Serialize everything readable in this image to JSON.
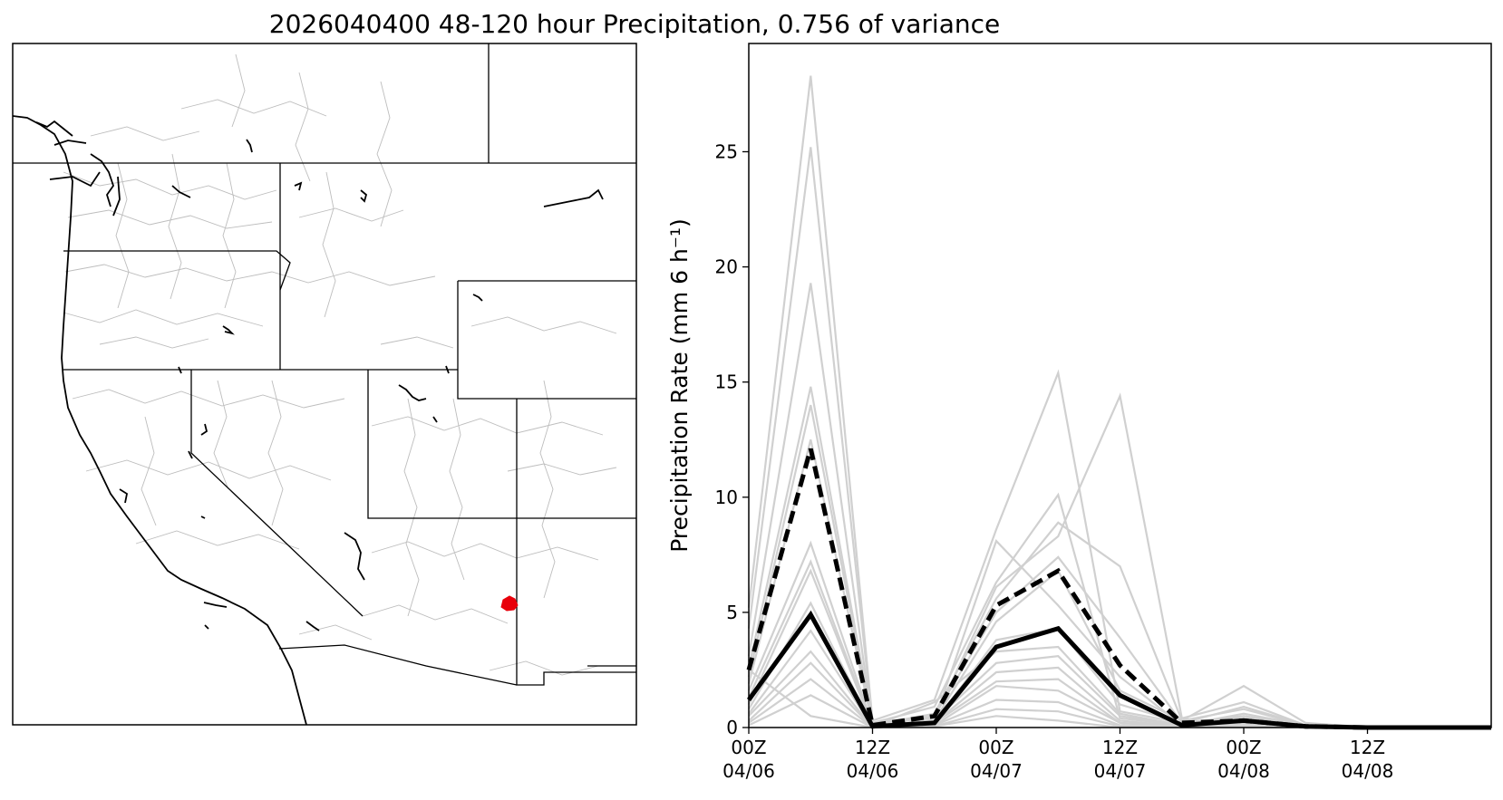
{
  "figure": {
    "title": "2026040400 48-120 hour Precipitation, 0.756 of variance"
  },
  "map": {
    "basemap": "western-us-states-hydrologic-basins",
    "marker_color": "#e8000b"
  },
  "chart_data": {
    "type": "line",
    "title": "",
    "ylabel": "Precipitation Rate (mm 6 h⁻¹)",
    "xlabel": "",
    "ylim": [
      0,
      29.7
    ],
    "yticks": [
      0,
      5,
      10,
      15,
      20,
      25
    ],
    "x": [
      0,
      6,
      12,
      18,
      24,
      30,
      36,
      42,
      48,
      54,
      60,
      66,
      72
    ],
    "xlim": [
      0,
      72
    ],
    "xticks": [
      {
        "x": 0,
        "line1": "00Z",
        "line2": "04/06"
      },
      {
        "x": 12,
        "line1": "12Z",
        "line2": "04/06"
      },
      {
        "x": 24,
        "line1": "00Z",
        "line2": "04/07"
      },
      {
        "x": 36,
        "line1": "12Z",
        "line2": "04/07"
      },
      {
        "x": 48,
        "line1": "00Z",
        "line2": "04/08"
      },
      {
        "x": 60,
        "line1": "12Z",
        "line2": "04/08"
      }
    ],
    "member_color": "#d0d0d0",
    "members": [
      [
        5.2,
        28.3,
        0.3,
        1.2,
        8.6,
        15.4,
        0.7,
        0.2,
        0.4,
        0.1,
        0,
        0,
        0
      ],
      [
        4.3,
        25.2,
        0.2,
        0.9,
        6.3,
        10.1,
        0.4,
        0.1,
        0.5,
        0.1,
        0,
        0,
        0
      ],
      [
        3.1,
        19.3,
        0.1,
        0.6,
        5.6,
        8.9,
        7.0,
        0.3,
        1.8,
        0.2,
        0,
        0,
        0
      ],
      [
        2.6,
        14.8,
        0.2,
        0.4,
        6.1,
        8.3,
        14.4,
        0.4,
        1.1,
        0.1,
        0,
        0,
        0
      ],
      [
        2.2,
        14.0,
        0.1,
        0.5,
        5.0,
        7.4,
        3.9,
        0.2,
        0.9,
        0.1,
        0,
        0,
        0
      ],
      [
        1.9,
        12.5,
        0.1,
        0.3,
        8.1,
        5.3,
        2.2,
        0.1,
        0.6,
        0.1,
        0,
        0,
        0
      ],
      [
        1.6,
        8.0,
        0.1,
        0.3,
        4.6,
        6.8,
        1.6,
        0.3,
        0.8,
        0.1,
        0,
        0,
        0
      ],
      [
        1.3,
        7.2,
        0.05,
        0.2,
        3.8,
        4.3,
        1.0,
        0.2,
        0.5,
        0.05,
        0,
        0,
        0
      ],
      [
        1.0,
        6.8,
        0.05,
        1.1,
        3.3,
        3.5,
        0.6,
        0.1,
        0.4,
        0.05,
        0,
        0,
        0
      ],
      [
        0.8,
        5.4,
        0.05,
        0.3,
        2.8,
        3.1,
        0.5,
        0.1,
        0.3,
        0,
        0,
        0,
        0
      ],
      [
        0.6,
        4.2,
        0,
        0.2,
        2.4,
        2.6,
        0.3,
        0.05,
        0.2,
        0,
        0,
        0,
        0
      ],
      [
        0.5,
        3.3,
        0,
        0.2,
        2.0,
        2.1,
        0.2,
        0.05,
        0.2,
        0,
        0,
        0,
        0
      ],
      [
        0.3,
        2.8,
        0,
        0.1,
        1.8,
        1.6,
        0.2,
        0,
        0.1,
        0,
        0,
        0,
        0
      ],
      [
        0.2,
        2.1,
        0,
        0.1,
        1.2,
        1.1,
        0.1,
        0,
        0.1,
        0,
        0,
        0,
        0
      ],
      [
        0.1,
        1.4,
        0,
        0.05,
        0.8,
        0.7,
        0.05,
        0,
        0.05,
        0,
        0,
        0,
        0
      ],
      [
        2.5,
        0.5,
        0,
        0.05,
        0.5,
        0.3,
        0,
        0,
        0,
        0,
        0,
        0,
        0
      ]
    ],
    "series": [
      {
        "values": [
          2.5,
          12.1,
          0.1,
          0.5,
          5.3,
          6.8,
          2.7,
          0.2,
          0.3,
          0.05,
          0,
          0,
          0
        ],
        "style": "dashed",
        "color": "#000000"
      },
      {
        "values": [
          1.2,
          4.9,
          0.05,
          0.2,
          3.5,
          4.3,
          1.4,
          0.1,
          0.3,
          0.05,
          0,
          0,
          0
        ],
        "style": "solid",
        "color": "#000000"
      }
    ],
    "grid": false,
    "legend": "none"
  }
}
